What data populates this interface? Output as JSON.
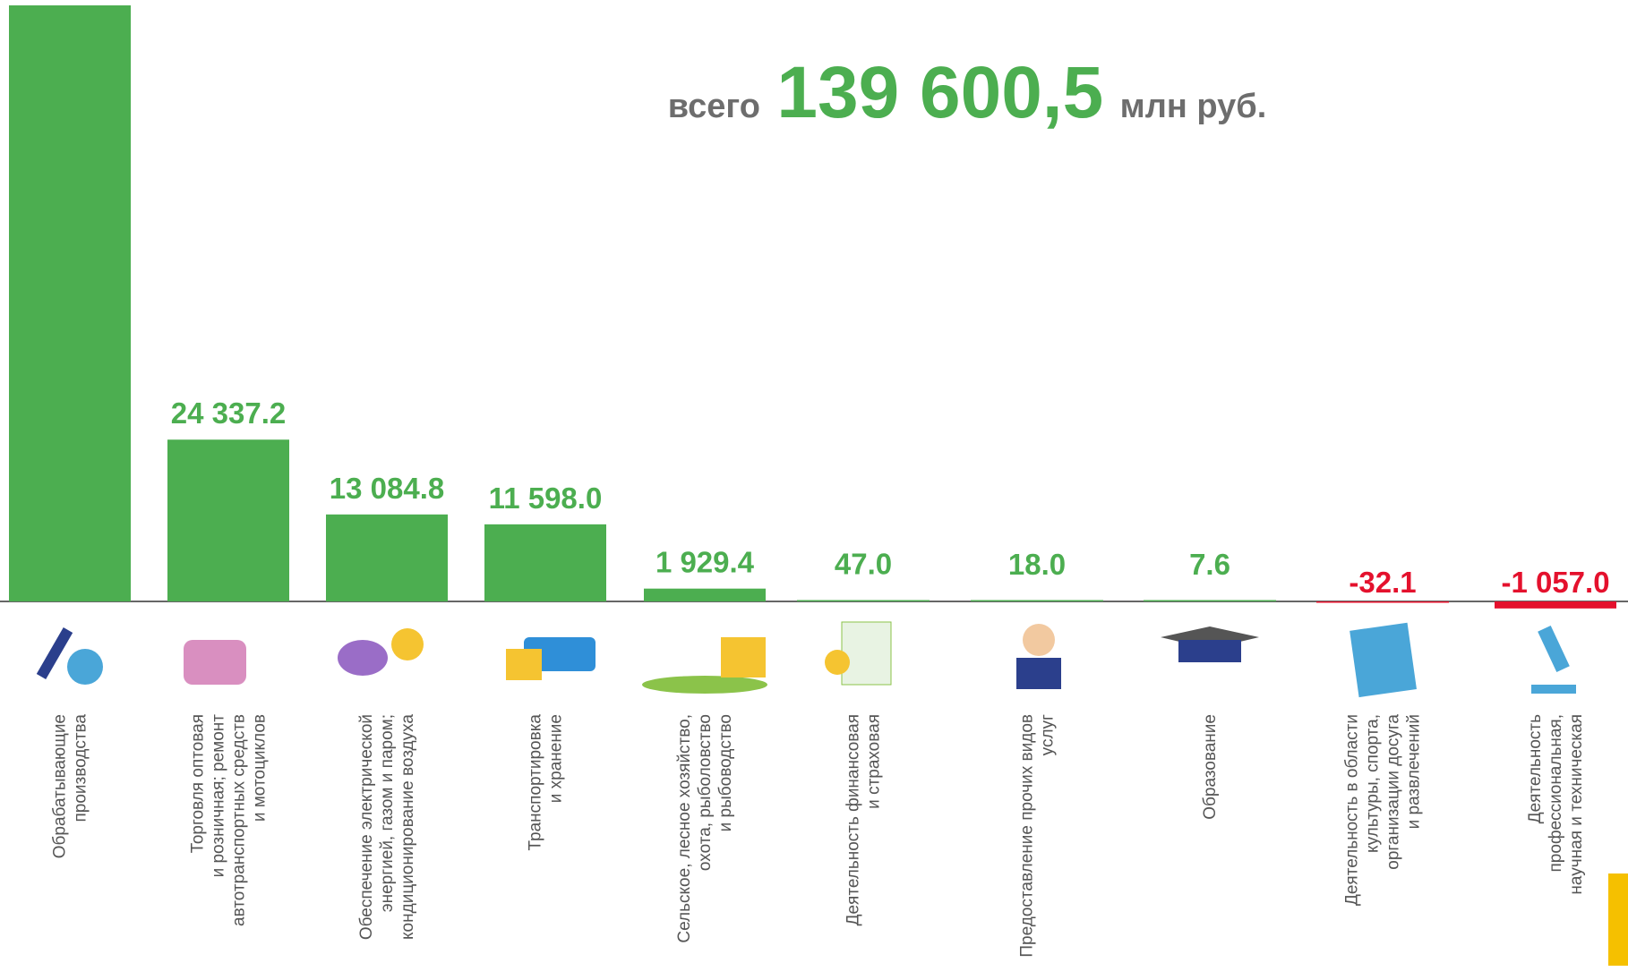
{
  "chart_data": {
    "type": "bar",
    "title": {
      "prefix": "всего",
      "total": "139 600,5",
      "unit": "млн руб."
    },
    "categories": [
      [
        "Обрабатывающие",
        "производства"
      ],
      [
        "Торговля оптовая",
        "и розничная; ремонт",
        "автотранспортных средств",
        "и мотоциклов"
      ],
      [
        "Обеспечение электрической",
        "энергией, газом и паром;",
        "кондиционирование воздуха"
      ],
      [
        "Транспортировка",
        "и хранение"
      ],
      [
        "Сельское, лесное хозяйство,",
        "охота, рыболовство",
        "и  рыбоводство"
      ],
      [
        "Деятельность финансовая",
        "и страховая"
      ],
      [
        "Предоставление прочих видов",
        "услуг"
      ],
      [
        "Образование"
      ],
      [
        "Деятельность в области",
        "культуры, спорта,",
        "организации досуга",
        "и развлечений"
      ],
      [
        "Деятельность",
        "профессиональная,",
        "научная и техническая"
      ]
    ],
    "values": [
      89667.6,
      24337.2,
      13084.8,
      11598.0,
      1929.4,
      47.0,
      18.0,
      7.6,
      -32.1,
      -1057.0
    ],
    "value_labels": [
      null,
      "24 337.2",
      "13 084.8",
      "11 598.0",
      "1 929.4",
      "47.0",
      "18.0",
      "7.6",
      "-32.1",
      "-1 057.0"
    ],
    "color": "#4cae50",
    "negative_color": "#e4112d"
  }
}
